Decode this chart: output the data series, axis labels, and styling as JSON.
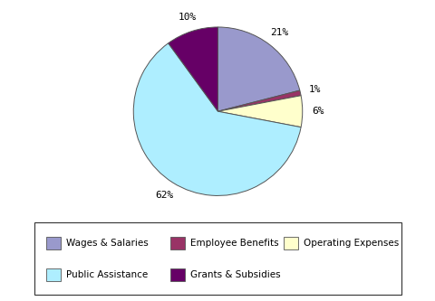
{
  "labels": [
    "Wages & Salaries",
    "Employee Benefits",
    "Operating Expenses",
    "Public Assistance",
    "Grants & Subsidies"
  ],
  "values": [
    21,
    1,
    6,
    62,
    10
  ],
  "colors": [
    "#9999CC",
    "#993366",
    "#FFFFCC",
    "#AEEEFF",
    "#660066"
  ],
  "pct_labels": [
    "21%",
    "1%",
    "6%",
    "62%",
    "10%"
  ],
  "background_color": "#ffffff",
  "startangle": 90,
  "legend_fontsize": 7.5,
  "pct_fontsize": 8
}
